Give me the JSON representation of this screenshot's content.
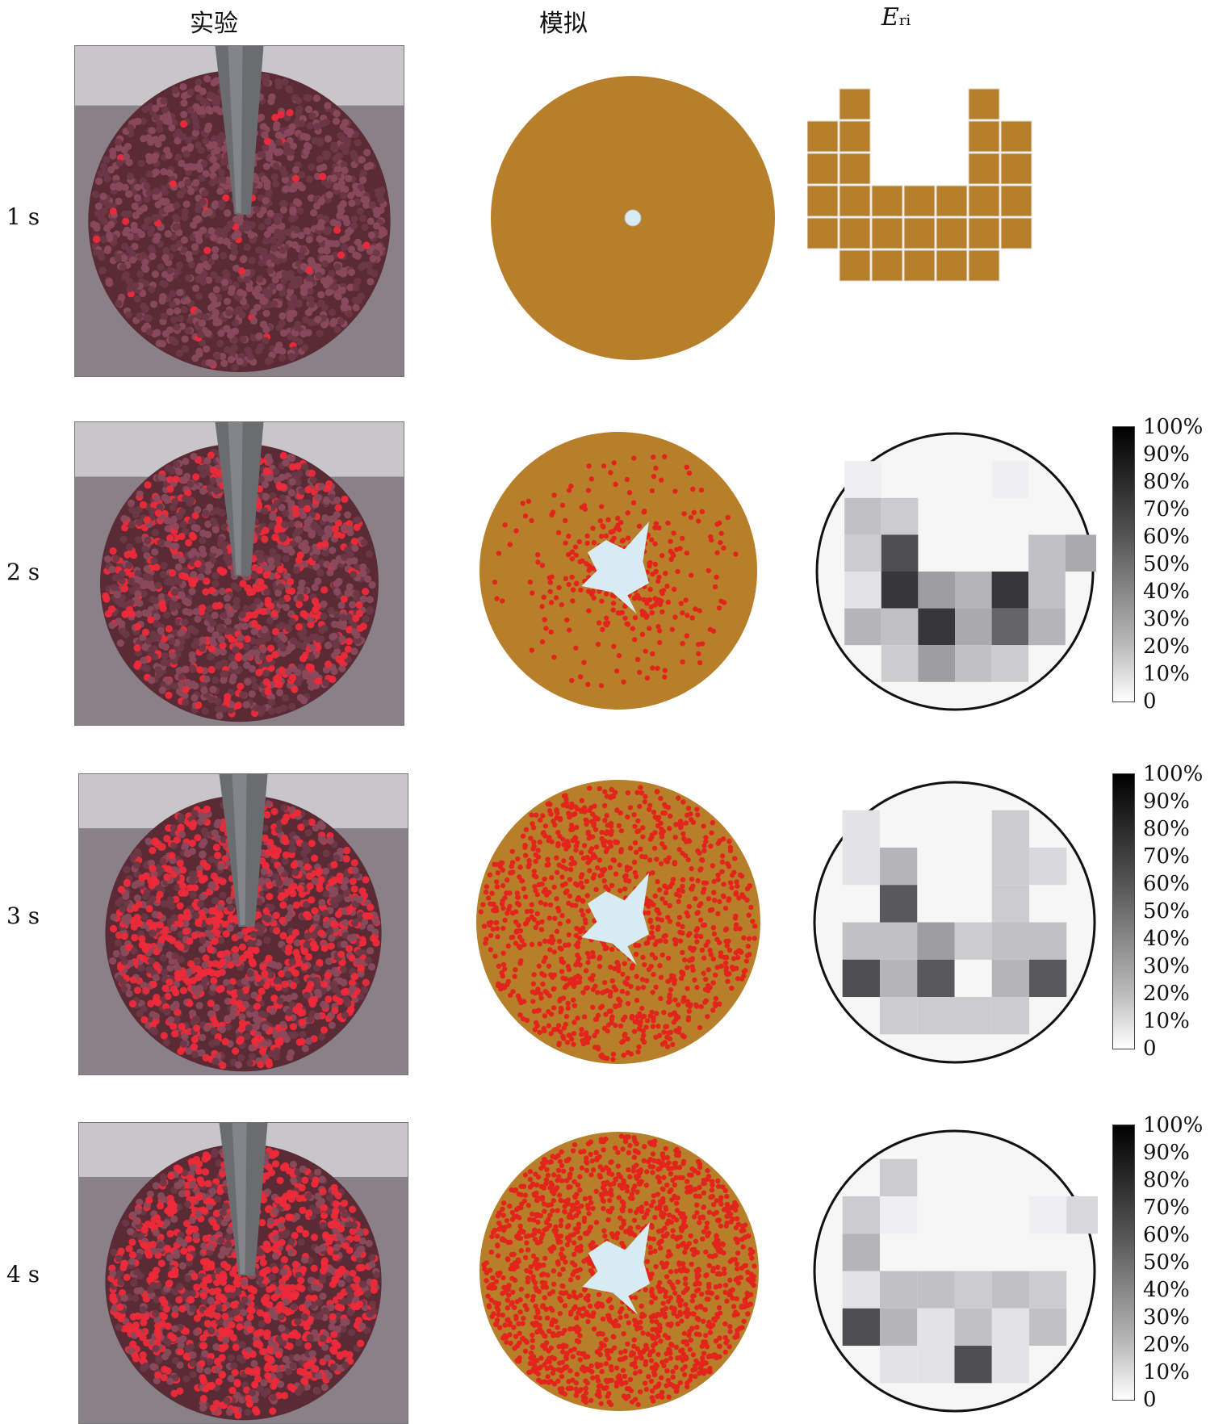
{
  "columns": {
    "experiment": "实验",
    "simulation": "模拟",
    "eri_main": "E",
    "eri_sub": "ri"
  },
  "rows": [
    {
      "label": "1 s",
      "red_fraction": 0.0,
      "eri": null
    },
    {
      "label": "2 s",
      "red_fraction": 0.18,
      "eri": [
        [
          null,
          null,
          5,
          null,
          null,
          null,
          5,
          null,
          null
        ],
        [
          null,
          null,
          25,
          20,
          null,
          null,
          null,
          null,
          null
        ],
        [
          null,
          null,
          20,
          75,
          null,
          null,
          null,
          25,
          35
        ],
        [
          null,
          null,
          10,
          85,
          40,
          30,
          85,
          25,
          null
        ],
        [
          null,
          null,
          30,
          25,
          85,
          35,
          65,
          30,
          null
        ],
        [
          null,
          null,
          null,
          20,
          40,
          25,
          20,
          null,
          null
        ]
      ]
    },
    {
      "label": "3 s",
      "red_fraction": 0.42,
      "eri": [
        [
          null,
          null,
          10,
          null,
          null,
          null,
          20,
          null,
          null
        ],
        [
          null,
          null,
          10,
          30,
          null,
          null,
          20,
          15,
          null
        ],
        [
          null,
          null,
          null,
          70,
          null,
          null,
          20,
          null,
          null
        ],
        [
          null,
          null,
          25,
          25,
          40,
          20,
          25,
          25,
          null
        ],
        [
          null,
          null,
          75,
          30,
          70,
          null,
          30,
          70,
          null
        ],
        [
          null,
          null,
          null,
          20,
          20,
          20,
          20,
          null,
          null
        ]
      ]
    },
    {
      "label": "4 s",
      "red_fraction": 0.6,
      "eri": [
        [
          null,
          null,
          null,
          20,
          null,
          null,
          null,
          null,
          null
        ],
        [
          null,
          null,
          20,
          5,
          null,
          null,
          null,
          5,
          15
        ],
        [
          null,
          null,
          30,
          null,
          null,
          null,
          null,
          null,
          null
        ],
        [
          null,
          null,
          10,
          25,
          25,
          20,
          25,
          20,
          null
        ],
        [
          null,
          null,
          75,
          30,
          10,
          25,
          10,
          25,
          null
        ],
        [
          null,
          null,
          null,
          10,
          10,
          75,
          10,
          null,
          null
        ]
      ]
    }
  ],
  "colorbar": {
    "ticks": [
      "100%",
      "90%",
      "80%",
      "70%",
      "60%",
      "50%",
      "40%",
      "30%",
      "20%",
      "10%",
      "0"
    ],
    "range": [
      0,
      100
    ]
  },
  "colors": {
    "sim_bulk": "#b87f2b",
    "sim_red": "#e3241c",
    "exp_dark": "#5a2a35",
    "exp_red": "#ee2a3a",
    "hole": "#d6ecf2"
  }
}
